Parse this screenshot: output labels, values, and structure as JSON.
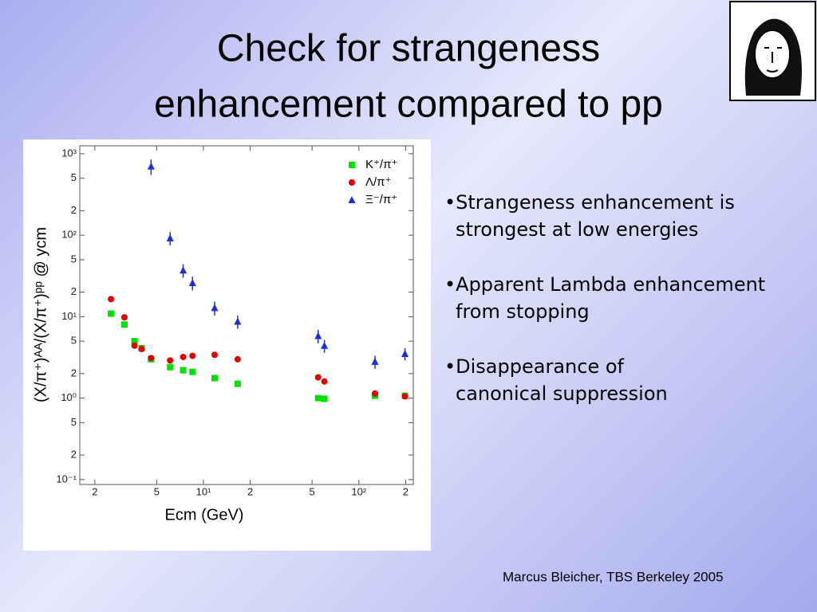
{
  "title": [
    "Check for strangeness",
    "enhancement compared to pp"
  ],
  "bullets": [
    [
      "•Strangeness enhancement is",
      "strongest at low energies"
    ],
    [
      "•Apparent Lambda enhancement",
      "from stopping"
    ],
    [
      "•Disappearance of",
      "canonical suppression"
    ]
  ],
  "footer": "Marcus Bleicher, TBS Berkeley 2005",
  "chart_data": {
    "type": "scatter",
    "xlabel": "Ecm (GeV)",
    "ylabel": "(X/π⁺)ᴬᴬ/(X/π⁺)ᵖᵖ @ ycm",
    "xscale": "log",
    "yscale": "log",
    "xlim": [
      1.6,
      224
    ],
    "ylim": [
      0.087,
      1250
    ],
    "xticks": [
      2,
      5,
      {
        "value": 10,
        "label": "10¹"
      },
      {
        "value": 20,
        "label": "2"
      },
      {
        "value": 50,
        "label": "5"
      },
      {
        "value": 100,
        "label": "10²"
      },
      {
        "value": 200,
        "label": "2"
      }
    ],
    "yticks": [
      {
        "value": 0.1,
        "label": "10⁻¹"
      },
      {
        "value": 0.2,
        "label": "2"
      },
      {
        "value": 0.5,
        "label": "5"
      },
      {
        "value": 1,
        "label": "10⁰"
      },
      2,
      5,
      {
        "value": 10,
        "label": "10¹"
      },
      {
        "value": 20,
        "label": "2"
      },
      {
        "value": 50,
        "label": "5"
      },
      {
        "value": 100,
        "label": "10²"
      },
      {
        "value": 200,
        "label": "2"
      },
      {
        "value": 500,
        "label": "5"
      },
      {
        "value": 1000,
        "label": "10³"
      }
    ],
    "legend": "upper right",
    "series": [
      {
        "name": "K⁺/π⁺",
        "color": "#00e000",
        "marker": "square",
        "x": [
          2.54,
          3.1,
          3.6,
          4.0,
          4.6,
          6.1,
          7.4,
          8.5,
          11.8,
          16.6,
          54.7,
          60,
          127,
          198
        ],
        "values": [
          10.9,
          8.0,
          5.0,
          4.1,
          3.0,
          2.4,
          2.2,
          2.1,
          1.76,
          1.5,
          1.0,
          0.98,
          1.07,
          1.07
        ]
      },
      {
        "name": "Λ/π⁺",
        "color": "#e00000",
        "marker": "circle",
        "x": [
          2.54,
          3.1,
          3.6,
          4.0,
          4.6,
          6.1,
          7.4,
          8.5,
          11.8,
          16.6,
          54.7,
          60,
          127,
          198
        ],
        "values": [
          16.4,
          9.8,
          4.4,
          4.0,
          3.1,
          2.9,
          3.2,
          3.3,
          3.4,
          3.0,
          1.8,
          1.6,
          1.14,
          1.05
        ]
      },
      {
        "name": "Ξ⁻/π⁺",
        "color": "#1a2ee0",
        "marker": "triangle",
        "x": [
          4.6,
          6.1,
          7.4,
          8.5,
          11.8,
          16.6,
          54.7,
          60,
          127,
          198
        ],
        "values": [
          700,
          92,
          37,
          26,
          12.8,
          8.7,
          5.8,
          4.4,
          2.8,
          3.5
        ],
        "errors": [
          150,
          17,
          7,
          5,
          2.5,
          1.6,
          1.1,
          0.8,
          0.5,
          0.6
        ]
      }
    ]
  }
}
